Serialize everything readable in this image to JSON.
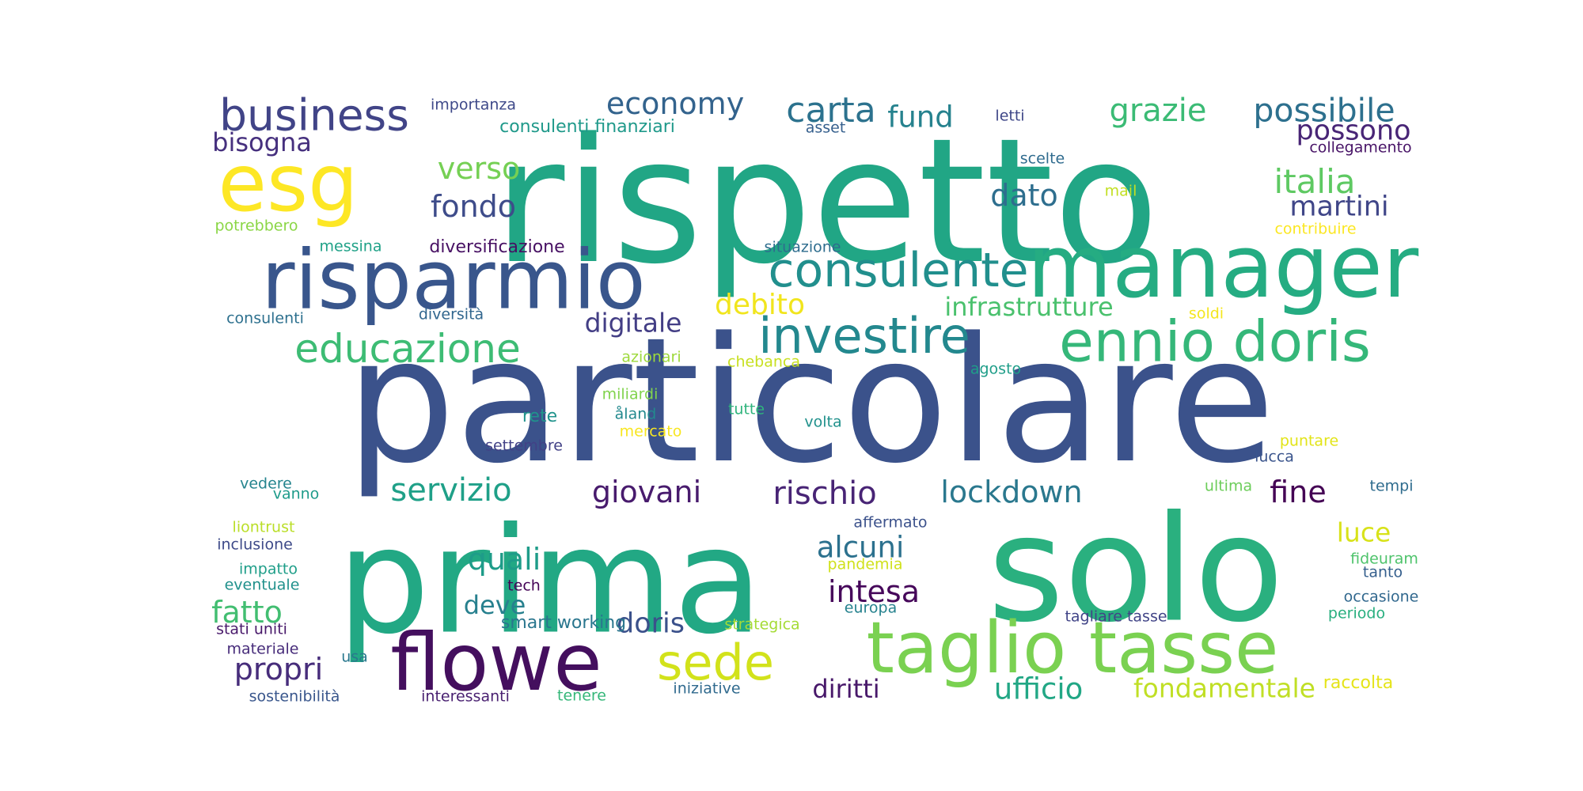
{
  "words": [
    {
      "text": "particolare",
      "color": "#3b528b"
    },
    {
      "text": "rispetto",
      "color": "#21a685"
    },
    {
      "text": "prima",
      "color": "#22a884"
    },
    {
      "text": "solo",
      "color": "#2ab07f"
    },
    {
      "text": "manager",
      "color": "#25ac82"
    },
    {
      "text": "risparmio",
      "color": "#39568c"
    },
    {
      "text": "taglio tasse",
      "color": "#7ad151"
    },
    {
      "text": "flowe",
      "color": "#440f5e"
    },
    {
      "text": "esg",
      "color": "#fde725"
    },
    {
      "text": "ennio doris",
      "color": "#35b779"
    },
    {
      "text": "investire",
      "color": "#23888e"
    },
    {
      "text": "consulente",
      "color": "#218f8d"
    },
    {
      "text": "business",
      "color": "#414487"
    },
    {
      "text": "educazione",
      "color": "#3dbc74"
    },
    {
      "text": "sede",
      "color": "#d2e21b"
    },
    {
      "text": "carta",
      "color": "#2c728e"
    },
    {
      "text": "economy",
      "color": "#33638d"
    },
    {
      "text": "possibile",
      "color": "#2d708e"
    },
    {
      "text": "grazie",
      "color": "#3bbb75"
    },
    {
      "text": "italia",
      "color": "#5ec962"
    },
    {
      "text": "fondo",
      "color": "#3e4c8a"
    },
    {
      "text": "verso",
      "color": "#75d054"
    },
    {
      "text": "dato",
      "color": "#2e6e8e"
    },
    {
      "text": "martini",
      "color": "#404688"
    },
    {
      "text": "possono",
      "color": "#482576"
    },
    {
      "text": "fund",
      "color": "#26828e"
    },
    {
      "text": "bisogna",
      "color": "#46307e"
    },
    {
      "text": "debito",
      "color": "#f1e51d"
    },
    {
      "text": "infrastrutture",
      "color": "#4ac16d"
    },
    {
      "text": "digitale",
      "color": "#433e85"
    },
    {
      "text": "servizio",
      "color": "#1fa088"
    },
    {
      "text": "giovani",
      "color": "#481b6d"
    },
    {
      "text": "rischio",
      "color": "#482475"
    },
    {
      "text": "lockdown",
      "color": "#2a788e"
    },
    {
      "text": "fine",
      "color": "#440154"
    },
    {
      "text": "alcuni",
      "color": "#2c718e"
    },
    {
      "text": "intesa",
      "color": "#46075a"
    },
    {
      "text": "quali",
      "color": "#1e9c89"
    },
    {
      "text": "luce",
      "color": "#d8e219"
    },
    {
      "text": "fatto",
      "color": "#42be71"
    },
    {
      "text": "deve",
      "color": "#27808e"
    },
    {
      "text": "doris",
      "color": "#3b518b"
    },
    {
      "text": "propri",
      "color": "#472d7b"
    },
    {
      "text": "diritti",
      "color": "#48186a"
    },
    {
      "text": "ufficio",
      "color": "#22a785"
    },
    {
      "text": "fondamentale",
      "color": "#c0df25"
    },
    {
      "text": "rete",
      "color": "#20938c"
    },
    {
      "text": "consulenti finanziari",
      "color": "#1f998a"
    },
    {
      "text": "importanza",
      "color": "#3e4989"
    },
    {
      "text": "asset",
      "color": "#355f8d"
    },
    {
      "text": "letti",
      "color": "#3f4788"
    },
    {
      "text": "collegamento",
      "color": "#481467"
    },
    {
      "text": "scelte",
      "color": "#2f6b8e"
    },
    {
      "text": "mail",
      "color": "#c2df23"
    },
    {
      "text": "potrebbero",
      "color": "#8bd646"
    },
    {
      "text": "messina",
      "color": "#1fa187"
    },
    {
      "text": "diversificazione",
      "color": "#471063"
    },
    {
      "text": "situazione",
      "color": "#2e6d8e"
    },
    {
      "text": "contribuire",
      "color": "#fbe723"
    },
    {
      "text": "consulenti",
      "color": "#2d708e"
    },
    {
      "text": "diversità",
      "color": "#31668e"
    },
    {
      "text": "soldi",
      "color": "#f4e61e"
    },
    {
      "text": "azionari",
      "color": "#9dd93b"
    },
    {
      "text": "chebanca",
      "color": "#c8e020"
    },
    {
      "text": "agosto",
      "color": "#1f9e89"
    },
    {
      "text": "miliardi",
      "color": "#81d34d"
    },
    {
      "text": "åland",
      "color": "#23898e"
    },
    {
      "text": "tutte",
      "color": "#2fb47c"
    },
    {
      "text": "volta",
      "color": "#21918c"
    },
    {
      "text": "mercato",
      "color": "#f8e621"
    },
    {
      "text": "settembre",
      "color": "#424186"
    },
    {
      "text": "puntare",
      "color": "#e2e418"
    },
    {
      "text": "lucca",
      "color": "#3a548c"
    },
    {
      "text": "vedere",
      "color": "#25848e"
    },
    {
      "text": "vanno",
      "color": "#1e9b8a"
    },
    {
      "text": "ultima",
      "color": "#6ccd5a"
    },
    {
      "text": "tempi",
      "color": "#2f6c8e"
    },
    {
      "text": "liontrust",
      "color": "#bade28"
    },
    {
      "text": "affermato",
      "color": "#3b518b"
    },
    {
      "text": "inclusione",
      "color": "#3e4a89"
    },
    {
      "text": "impatto",
      "color": "#1f9e89"
    },
    {
      "text": "eventuale",
      "color": "#21918c"
    },
    {
      "text": "tech",
      "color": "#450457"
    },
    {
      "text": "pandemia",
      "color": "#d0e11c"
    },
    {
      "text": "fideuram",
      "color": "#4ec36b"
    },
    {
      "text": "tanto",
      "color": "#355f8d"
    },
    {
      "text": "occasione",
      "color": "#31688e"
    },
    {
      "text": "europa",
      "color": "#26828e"
    },
    {
      "text": "smart working",
      "color": "#2a768e"
    },
    {
      "text": "strategica",
      "color": "#a5db36"
    },
    {
      "text": "tagliare tasse",
      "color": "#414487"
    },
    {
      "text": "periodo",
      "color": "#29af7f"
    },
    {
      "text": "stati uniti",
      "color": "#48186a"
    },
    {
      "text": "materiale",
      "color": "#472c7a"
    },
    {
      "text": "usa",
      "color": "#2a788e"
    },
    {
      "text": "sostenibilità",
      "color": "#39568c"
    },
    {
      "text": "interessanti",
      "color": "#481f70"
    },
    {
      "text": "tenere",
      "color": "#35b779"
    },
    {
      "text": "iniziative",
      "color": "#306a8e"
    },
    {
      "text": "raccolta",
      "color": "#e5e419"
    }
  ]
}
